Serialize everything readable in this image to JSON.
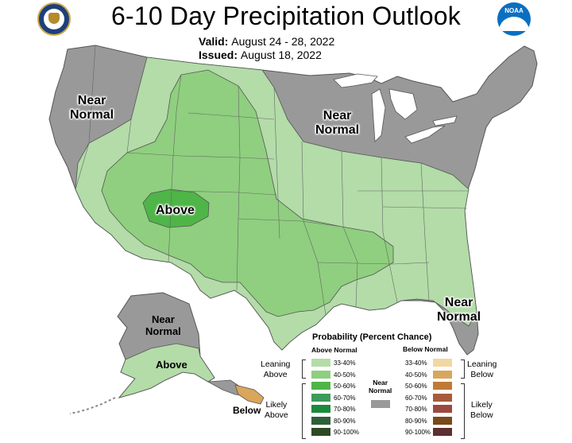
{
  "header": {
    "title": "6-10 Day Precipitation Outlook",
    "valid_label": "Valid:",
    "valid_dates": "August 24 - 28, 2022",
    "issued_label": "Issued:",
    "issued_date": "August 18, 2022",
    "noaa_logo_text": "NOAA"
  },
  "map_labels": {
    "near_normal_west": "Near\nNormal",
    "near_normal_midwest": "Near\nNormal",
    "above_four_corners": "Above",
    "near_normal_southeast": "Near\nNormal",
    "near_normal_alaska_north": "Near\nNormal",
    "above_alaska": "Above",
    "below_alaska_panhandle": "Below"
  },
  "legend": {
    "title": "Probability (Percent Chance)",
    "above_heading": "Above Normal",
    "below_heading": "Below Normal",
    "near_normal_label": "Near\nNormal",
    "leaning_above": "Leaning\nAbove",
    "likely_above": "Likely\nAbove",
    "leaning_below": "Leaning\nBelow",
    "likely_below": "Likely\nBelow",
    "above_bins": [
      {
        "label": "33-40%",
        "color": "#b3dca8"
      },
      {
        "label": "40-50%",
        "color": "#8fcf7f"
      },
      {
        "label": "50-60%",
        "color": "#4fb548"
      },
      {
        "label": "60-70%",
        "color": "#3d9a5a"
      },
      {
        "label": "70-80%",
        "color": "#1b8a3c"
      },
      {
        "label": "80-90%",
        "color": "#2f5f3a"
      },
      {
        "label": "90-100%",
        "color": "#2e4a24"
      }
    ],
    "below_bins": [
      {
        "label": "33-40%",
        "color": "#f2d7a0"
      },
      {
        "label": "40-50%",
        "color": "#d9a65b"
      },
      {
        "label": "50-60%",
        "color": "#c07a33"
      },
      {
        "label": "60-70%",
        "color": "#a85b3a"
      },
      {
        "label": "70-80%",
        "color": "#9b4a3e"
      },
      {
        "label": "80-90%",
        "color": "#7b4a1a"
      },
      {
        "label": "90-100%",
        "color": "#5a3030"
      }
    ],
    "near_normal_color": "#999999"
  },
  "colors": {
    "near_normal": "#999999",
    "above_33_40": "#b3dca8",
    "above_40_50": "#8fcf7f",
    "above_50_60": "#4fb548",
    "below_40_50": "#d9a65b",
    "water": "#ffffff"
  }
}
